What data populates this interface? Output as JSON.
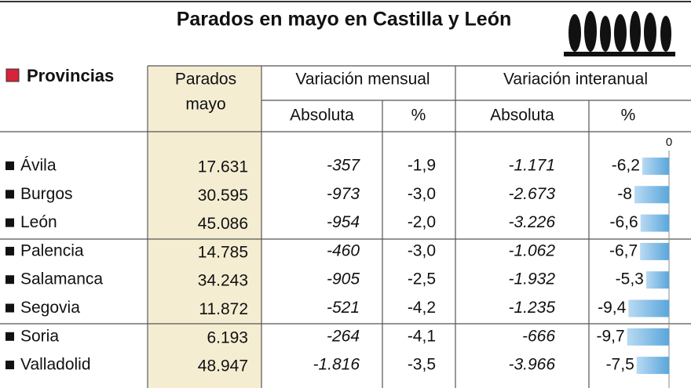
{
  "header": {
    "title": "Parados en mayo en Castilla y León"
  },
  "table": {
    "columns": {
      "provincias": "Provincias",
      "parados": [
        "Parados",
        "mayo"
      ],
      "mensual": "Variación mensual",
      "interanual": "Variación interanual",
      "sub": [
        "Absoluta",
        "%",
        "Absoluta",
        "%"
      ]
    },
    "rows": [
      [
        "Ávila",
        "17.631",
        "-357",
        "-1,9",
        "-1.171",
        {
          "value": -6.2,
          "label": "-6,2"
        }
      ],
      [
        "Burgos",
        "30.595",
        "-973",
        "-3,0",
        "-2.673",
        {
          "value": -8,
          "label": "-8"
        }
      ],
      [
        "León",
        "45.086",
        "-954",
        "-2,0",
        "-3.226",
        {
          "value": -6.6,
          "label": "-6,6"
        }
      ],
      [
        "Palencia",
        "14.785",
        "-460",
        "-3,0",
        "-1.062",
        {
          "value": -6.7,
          "label": "-6,7"
        }
      ],
      [
        "Salamanca",
        "34.243",
        "-905",
        "-2,5",
        "-1.932",
        {
          "value": -5.3,
          "label": "-5,3"
        }
      ],
      [
        "Segovia",
        "11.872",
        "-521",
        "-4,2",
        "-1.235",
        {
          "value": -9.4,
          "label": "-9,4"
        }
      ],
      [
        "Soria",
        "6.193",
        "-264",
        "-4,1",
        "-666",
        {
          "value": -9.7,
          "label": "-9,7"
        }
      ],
      [
        "Valladolid",
        "48.947",
        "-1.816",
        "-3,5",
        "-3.966",
        {
          "value": -7.5,
          "label": "-7,5"
        }
      ]
    ],
    "bar_axis": {
      "xlim": [
        -10,
        0
      ],
      "xticks": [
        0
      ]
    }
  }
}
